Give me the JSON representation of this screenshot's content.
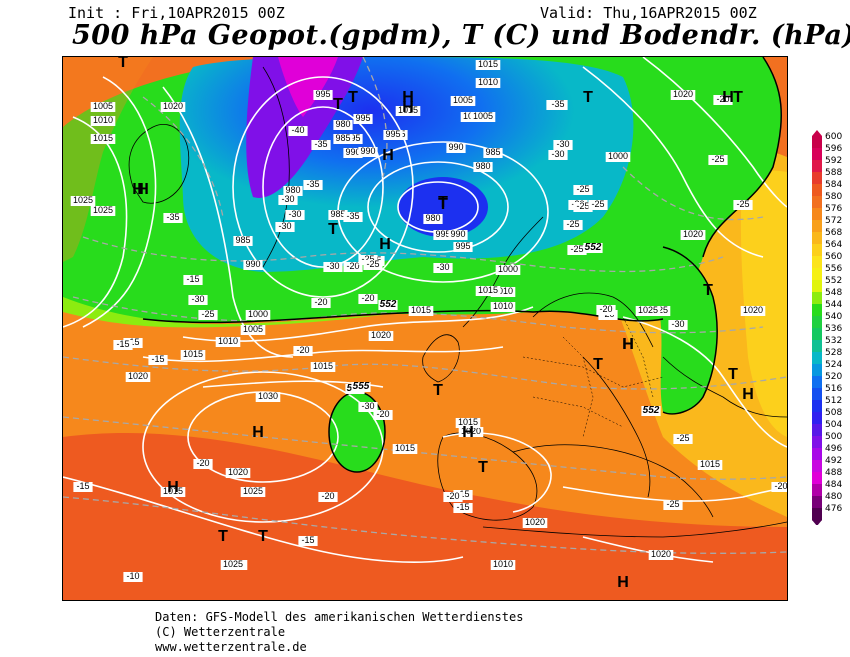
{
  "header": {
    "init": "Init : Fri,10APR2015 00Z",
    "valid": "Valid: Thu,16APR2015 00Z",
    "title": "500 hPa Geopot.(gpdm), T (C) und Bodendr. (hPa)"
  },
  "footer": {
    "line1": "Daten: GFS-Modell des amerikanischen Wetterdienstes",
    "line2": "(C) Wetterzentrale",
    "line3": "www.wetterzentrale.de"
  },
  "colorbar": {
    "levels": [
      "600",
      "596",
      "592",
      "588",
      "584",
      "580",
      "576",
      "572",
      "568",
      "564",
      "560",
      "556",
      "552",
      "548",
      "544",
      "540",
      "536",
      "532",
      "528",
      "524",
      "520",
      "516",
      "512",
      "508",
      "504",
      "500",
      "496",
      "492",
      "488",
      "484",
      "480",
      "476"
    ],
    "colors": [
      "#c8004a",
      "#d8005a",
      "#e01848",
      "#e83c2c",
      "#ee5a20",
      "#f27020",
      "#f6881c",
      "#f8a01c",
      "#fab81c",
      "#fcd01c",
      "#fce41c",
      "#f6f014",
      "#e0f40c",
      "#8cec10",
      "#28dc1c",
      "#20d040",
      "#14c860",
      "#10c094",
      "#08b8c8",
      "#0898e0",
      "#1070f0",
      "#1450f0",
      "#1c30f0",
      "#3020f0",
      "#5818e8",
      "#8010e8",
      "#a808e8",
      "#c808e0",
      "#e000d8",
      "#b000a8",
      "#780078",
      "#500050"
    ]
  },
  "map": {
    "pressure_labels": [
      {
        "t": "1005"
      },
      {
        "t": "1010"
      },
      {
        "t": "1020"
      },
      {
        "t": "1015"
      },
      {
        "t": "1025"
      },
      {
        "t": "1025"
      },
      {
        "t": "985"
      },
      {
        "t": "990"
      },
      {
        "t": "995"
      },
      {
        "t": "980"
      },
      {
        "t": "985"
      },
      {
        "t": "990"
      },
      {
        "t": "980"
      },
      {
        "t": "995"
      },
      {
        "t": "995"
      },
      {
        "t": "1010"
      },
      {
        "t": "1015"
      },
      {
        "t": "1005"
      },
      {
        "t": "1000"
      },
      {
        "t": "990"
      },
      {
        "t": "985"
      },
      {
        "t": "980"
      },
      {
        "t": "980"
      },
      {
        "t": "995"
      },
      {
        "t": "990"
      },
      {
        "t": "995"
      },
      {
        "t": "995"
      },
      {
        "t": "1000"
      },
      {
        "t": "1005"
      },
      {
        "t": "1010"
      },
      {
        "t": "1015"
      },
      {
        "t": "1000"
      },
      {
        "t": "1010"
      },
      {
        "t": "1015"
      },
      {
        "t": "1025"
      },
      {
        "t": "1020"
      },
      {
        "t": "1005"
      },
      {
        "t": "1010"
      },
      {
        "t": "1000"
      },
      {
        "t": "1015"
      },
      {
        "t": "1020"
      },
      {
        "t": "1020"
      },
      {
        "t": "1015"
      },
      {
        "t": "1030"
      },
      {
        "t": "1025"
      },
      {
        "t": "1015"
      },
      {
        "t": "1015"
      },
      {
        "t": "1020"
      },
      {
        "t": "1015"
      },
      {
        "t": "1015"
      },
      {
        "t": "1010"
      },
      {
        "t": "1020"
      },
      {
        "t": "1020"
      },
      {
        "t": "1025"
      },
      {
        "t": "1020"
      },
      {
        "t": "1025"
      },
      {
        "t": "1020"
      },
      {
        "t": "1025"
      },
      {
        "t": "1020"
      },
      {
        "t": "995"
      },
      {
        "t": "990"
      },
      {
        "t": "985"
      },
      {
        "t": "1015"
      },
      {
        "t": "1020"
      }
    ],
    "temp_labels": [
      {
        "t": "-35"
      },
      {
        "t": "-30"
      },
      {
        "t": "-25"
      },
      {
        "t": "-20"
      },
      {
        "t": "-15"
      },
      {
        "t": "-15"
      },
      {
        "t": "-40"
      },
      {
        "t": "-35"
      },
      {
        "t": "-30"
      },
      {
        "t": "-35"
      },
      {
        "t": "-30"
      },
      {
        "t": "-30"
      },
      {
        "t": "-25"
      },
      {
        "t": "-20"
      },
      {
        "t": "-30"
      },
      {
        "t": "-30"
      },
      {
        "t": "-25"
      },
      {
        "t": "-25"
      },
      {
        "t": "-20"
      },
      {
        "t": "-35"
      },
      {
        "t": "-30"
      },
      {
        "t": "-25"
      },
      {
        "t": "-25"
      },
      {
        "t": "-30"
      },
      {
        "t": "-25"
      },
      {
        "t": "-35"
      },
      {
        "t": "-35"
      },
      {
        "t": "-30"
      },
      {
        "t": "-25"
      },
      {
        "t": "-25"
      },
      {
        "t": "-25"
      },
      {
        "t": "-20"
      },
      {
        "t": "-30"
      },
      {
        "t": "-25"
      },
      {
        "t": "-20"
      },
      {
        "t": "-25"
      },
      {
        "t": "-20"
      },
      {
        "t": "-15"
      },
      {
        "t": "-15"
      },
      {
        "t": "-20"
      },
      {
        "t": "-20"
      },
      {
        "t": "-15"
      },
      {
        "t": "-15"
      },
      {
        "t": "-20"
      },
      {
        "t": "-15"
      },
      {
        "t": "-10"
      },
      {
        "t": "-15"
      },
      {
        "t": "-20"
      },
      {
        "t": "-30"
      },
      {
        "t": "-20"
      },
      {
        "t": "-20"
      },
      {
        "t": "-25"
      }
    ],
    "systems": [
      {
        "t": "H"
      },
      {
        "t": "T"
      },
      {
        "t": "H"
      },
      {
        "t": "T"
      },
      {
        "t": "H"
      },
      {
        "t": "T"
      },
      {
        "t": "H"
      },
      {
        "t": "T"
      },
      {
        "t": "T"
      },
      {
        "t": "H"
      },
      {
        "t": "T"
      },
      {
        "t": "H"
      },
      {
        "t": "T"
      },
      {
        "t": "T"
      },
      {
        "t": "H"
      },
      {
        "t": "T"
      },
      {
        "t": "H"
      },
      {
        "t": "T"
      },
      {
        "t": "H"
      },
      {
        "t": "T"
      },
      {
        "t": "H"
      },
      {
        "t": "T"
      },
      {
        "t": "H"
      },
      {
        "t": "T"
      },
      {
        "t": "T"
      },
      {
        "t": "H"
      },
      {
        "t": "H"
      },
      {
        "t": "H"
      },
      {
        "t": "T"
      }
    ],
    "geopot_labels": [
      {
        "t": "552"
      },
      {
        "t": "552"
      },
      {
        "t": "552"
      },
      {
        "t": "552"
      },
      {
        "t": "555"
      }
    ]
  }
}
